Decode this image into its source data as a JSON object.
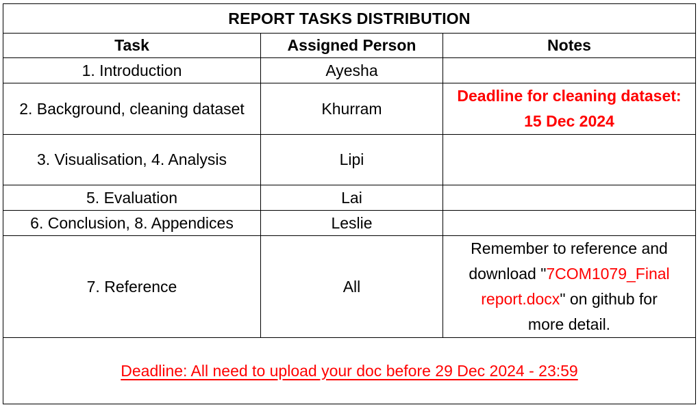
{
  "title": "REPORT TASKS DISTRIBUTION",
  "headers": {
    "task": "Task",
    "assigned": "Assigned Person",
    "notes": "Notes"
  },
  "rows": [
    {
      "task": "1. Introduction",
      "person": "Ayesha",
      "notes": ""
    },
    {
      "task": "2. Background, cleaning dataset",
      "person": "Khurram",
      "notes_line1": "Deadline for cleaning dataset:",
      "notes_line2": "15 Dec 2024"
    },
    {
      "task": "3. Visualisation, 4. Analysis",
      "person": "Lipi",
      "notes": ""
    },
    {
      "task": "5. Evaluation",
      "person": "Lai",
      "notes": ""
    },
    {
      "task": "6. Conclusion, 8. Appendices",
      "person": "Leslie",
      "notes": ""
    },
    {
      "task": "7. Reference",
      "person": "All",
      "notes_parts": {
        "line1": "Remember to reference and",
        "line2_prefix": "download \"",
        "file_part1": "7COM1079_Final",
        "file_part2": "report.docx",
        "line3_suffix": "\" on github for",
        "line4": "more detail."
      }
    }
  ],
  "deadline": "Deadline: All need to upload your doc before 29 Dec 2024 - 23:59",
  "colors": {
    "accent_red": "#ff0000",
    "border": "#000000"
  }
}
